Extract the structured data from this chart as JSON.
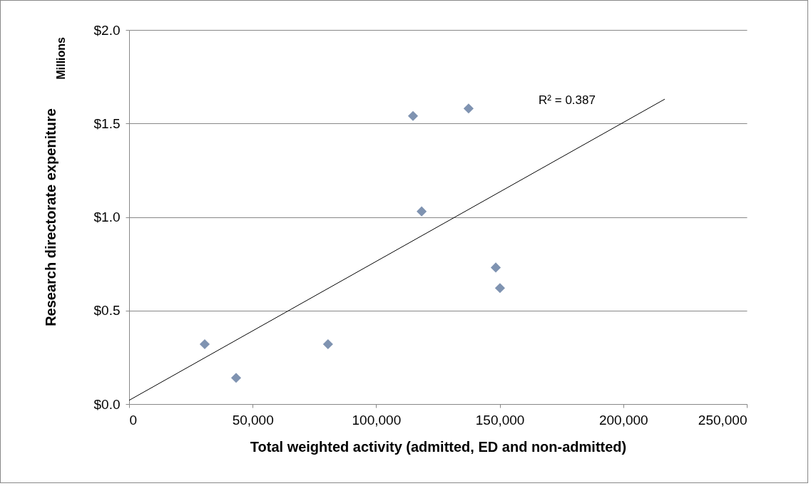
{
  "chart_data": {
    "type": "scatter",
    "xlabel": "Total weighted activity (admitted, ED and non-admitted)",
    "ylabel": "Research directorate expeniture",
    "series": [
      {
        "color": "#7f93b1",
        "marker": "diamond",
        "x": [
          30600,
          43300,
          80500,
          114900,
          137400,
          118400,
          148400,
          150100
        ],
        "values": [
          0.32,
          0.14,
          0.32,
          1.54,
          1.58,
          1.03,
          0.73,
          0.62
        ]
      },
      {
        "type": "line",
        "color": "#000000",
        "line_style": "solid",
        "x": [
          0,
          216800
        ],
        "values": [
          0.02,
          1.63
        ]
      }
    ],
    "xlim": [
      0,
      250000
    ],
    "xticks": [
      0,
      {
        "value": 50000,
        "label": "50,000"
      },
      {
        "value": 100000,
        "label": "100,000"
      },
      {
        "value": 150000,
        "label": "150,000"
      },
      {
        "value": 200000,
        "label": "200,000"
      },
      {
        "value": 250000,
        "label": "250,000"
      }
    ],
    "ylim": [
      0,
      2
    ],
    "yticks": [
      {
        "value": 0,
        "label": "$0.0"
      },
      {
        "value": 0.5,
        "label": "$0.5"
      },
      {
        "value": 1,
        "label": "$1.0"
      },
      {
        "value": 1.5,
        "label": "$1.5"
      },
      {
        "value": 2,
        "label": "$2.0"
      }
    ],
    "grid": "y",
    "annotations": [
      "Millions",
      "R² = 0.387"
    ]
  }
}
